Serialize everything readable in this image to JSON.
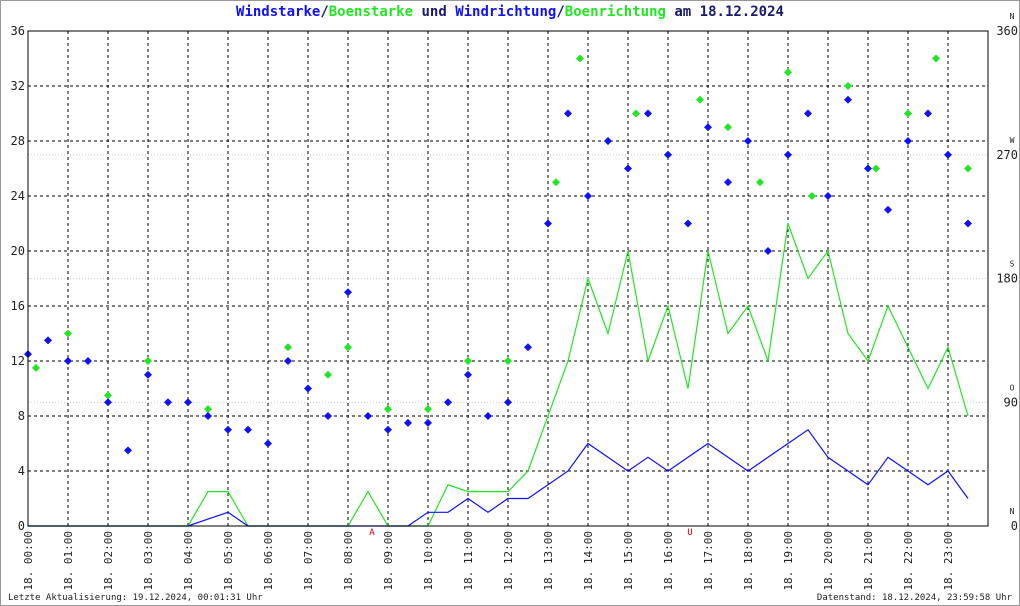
{
  "chart_data": {
    "type": "wind",
    "title_sep": "/",
    "title_mid": " und ",
    "title_end": " am 18.12.2024",
    "xlim": [
      0,
      24
    ],
    "xticks": [
      {
        "value": 0,
        "label": "18. 00:00"
      },
      {
        "value": 1,
        "label": "18. 01:00"
      },
      {
        "value": 2,
        "label": "18. 02:00"
      },
      {
        "value": 3,
        "label": "18. 03:00"
      },
      {
        "value": 4,
        "label": "18. 04:00"
      },
      {
        "value": 5,
        "label": "18. 05:00"
      },
      {
        "value": 6,
        "label": "18. 06:00"
      },
      {
        "value": 7,
        "label": "18. 07:00"
      },
      {
        "value": 8,
        "label": "18. 08:00"
      },
      {
        "value": 9,
        "label": "18. 09:00"
      },
      {
        "value": 10,
        "label": "18. 10:00"
      },
      {
        "value": 11,
        "label": "18. 11:00"
      },
      {
        "value": 12,
        "label": "18. 12:00"
      },
      {
        "value": 13,
        "label": "18. 13:00"
      },
      {
        "value": 14,
        "label": "18. 14:00"
      },
      {
        "value": 15,
        "label": "18. 15:00"
      },
      {
        "value": 16,
        "label": "18. 16:00"
      },
      {
        "value": 17,
        "label": "18. 17:00"
      },
      {
        "value": 18,
        "label": "18. 18:00"
      },
      {
        "value": 19,
        "label": "18. 19:00"
      },
      {
        "value": 20,
        "label": "18. 20:00"
      },
      {
        "value": 21,
        "label": "18. 21:00"
      },
      {
        "value": 22,
        "label": "18. 22:00"
      },
      {
        "value": 23,
        "label": "18. 23:00"
      }
    ],
    "ylim": [
      0,
      36
    ],
    "yticks": [
      0,
      4,
      8,
      12,
      16,
      20,
      24,
      28,
      32,
      36
    ],
    "y2lim": [
      0,
      360
    ],
    "y2ticks": [
      0,
      90,
      180,
      270,
      360
    ],
    "compass": [
      {
        "value": 0,
        "label": "N"
      },
      {
        "value": 90,
        "label": "O"
      },
      {
        "value": 180,
        "label": "S"
      },
      {
        "value": 270,
        "label": "W"
      },
      {
        "value": 360,
        "label": "N"
      }
    ],
    "grid": true,
    "annotations": [
      {
        "label": "A",
        "x": 8.6,
        "color": "#e00000"
      },
      {
        "label": "U",
        "x": 16.55,
        "color": "#e00000"
      }
    ],
    "series": [
      {
        "name": "Windstarke",
        "color": "#1010ff",
        "style": "line",
        "axis": "y",
        "x": [
          0,
          0.5,
          1,
          1.5,
          2,
          2.5,
          3,
          3.5,
          4,
          4.5,
          5,
          5.5,
          6,
          6.5,
          7,
          7.5,
          8,
          8.5,
          9,
          9.5,
          10,
          10.5,
          11,
          11.5,
          12,
          12.5,
          13,
          13.5,
          14,
          14.5,
          15,
          15.5,
          16,
          16.5,
          17,
          17.5,
          18,
          18.5,
          19,
          19.5,
          20,
          20.5,
          21,
          21.5,
          22,
          22.5,
          23,
          23.5
        ],
        "values": [
          0,
          0,
          0,
          0,
          0,
          0,
          0,
          0,
          0,
          0.5,
          1,
          0,
          0,
          0,
          0,
          0,
          0,
          0,
          0,
          0,
          1,
          1,
          2,
          1,
          2,
          2,
          3,
          4,
          6,
          5,
          4,
          5,
          4,
          5,
          6,
          5,
          4,
          5,
          6,
          7,
          5,
          4,
          3,
          5,
          4,
          3,
          4,
          2
        ]
      },
      {
        "name": "Boenstarke",
        "color": "#22e622",
        "style": "line",
        "axis": "y",
        "x": [
          0,
          0.5,
          1,
          1.5,
          2,
          2.5,
          3,
          3.5,
          4,
          4.5,
          5,
          5.5,
          6,
          6.5,
          7,
          7.5,
          8,
          8.5,
          9,
          9.5,
          10,
          10.5,
          11,
          11.5,
          12,
          12.5,
          13,
          13.5,
          14,
          14.5,
          15,
          15.5,
          16,
          16.5,
          17,
          17.5,
          18,
          18.5,
          19,
          19.5,
          20,
          20.5,
          21,
          21.5,
          22,
          22.5,
          23,
          23.5
        ],
        "values": [
          0,
          0,
          0,
          0,
          0,
          0,
          0,
          0,
          0,
          2.5,
          2.5,
          0,
          0,
          0,
          0,
          0,
          0,
          2.5,
          0,
          0,
          0,
          3,
          2.5,
          2.5,
          2.5,
          4,
          8,
          12,
          18,
          14,
          20,
          12,
          16,
          10,
          20,
          14,
          16,
          12,
          22,
          18,
          20,
          14,
          12,
          16,
          13,
          10,
          13,
          8
        ]
      },
      {
        "name": "Windrichtung",
        "color": "#1010ff",
        "style": "points",
        "axis": "y2",
        "x": [
          0,
          0.5,
          1,
          1.5,
          2,
          2.5,
          3,
          3.5,
          4,
          4.5,
          5,
          5.5,
          6,
          6.5,
          7,
          7.5,
          8,
          8.5,
          9,
          9.5,
          10,
          10.5,
          11,
          11.5,
          12,
          12.5,
          13,
          13.5,
          14,
          14.5,
          15,
          15.5,
          16,
          16.5,
          17,
          17.5,
          18,
          18.5,
          19,
          19.5,
          20,
          20.5,
          21,
          21.5,
          22,
          22.5,
          23,
          23.5
        ],
        "values": [
          125,
          135,
          120,
          120,
          90,
          55,
          110,
          90,
          90,
          80,
          70,
          70,
          60,
          120,
          100,
          80,
          170,
          80,
          70,
          75,
          75,
          90,
          110,
          80,
          90,
          130,
          220,
          300,
          240,
          280,
          260,
          300,
          270,
          220,
          290,
          250,
          280,
          200,
          270,
          300,
          240,
          310,
          260,
          230,
          280,
          300,
          270,
          220
        ]
      },
      {
        "name": "Boenrichtung",
        "color": "#22e622",
        "style": "points",
        "axis": "y2",
        "x": [
          0.2,
          1,
          2,
          3,
          4.5,
          6.5,
          7.5,
          8,
          9,
          10,
          11,
          12,
          13.2,
          13.8,
          14.5,
          15.2,
          16,
          16.8,
          17.5,
          18.3,
          19,
          19.6,
          20.5,
          21.2,
          22,
          22.7,
          23.5
        ],
        "values": [
          115,
          140,
          95,
          120,
          85,
          130,
          110,
          130,
          85,
          85,
          120,
          120,
          250,
          340,
          280,
          300,
          270,
          310,
          290,
          250,
          330,
          240,
          320,
          260,
          300,
          340,
          260
        ]
      }
    ],
    "footer_left": "Letzte Aktualisierung: 19.12.2024, 00:01:31 Uhr",
    "footer_right": "Datenstand: 18.12.2024, 23:59:58 Uhr"
  }
}
